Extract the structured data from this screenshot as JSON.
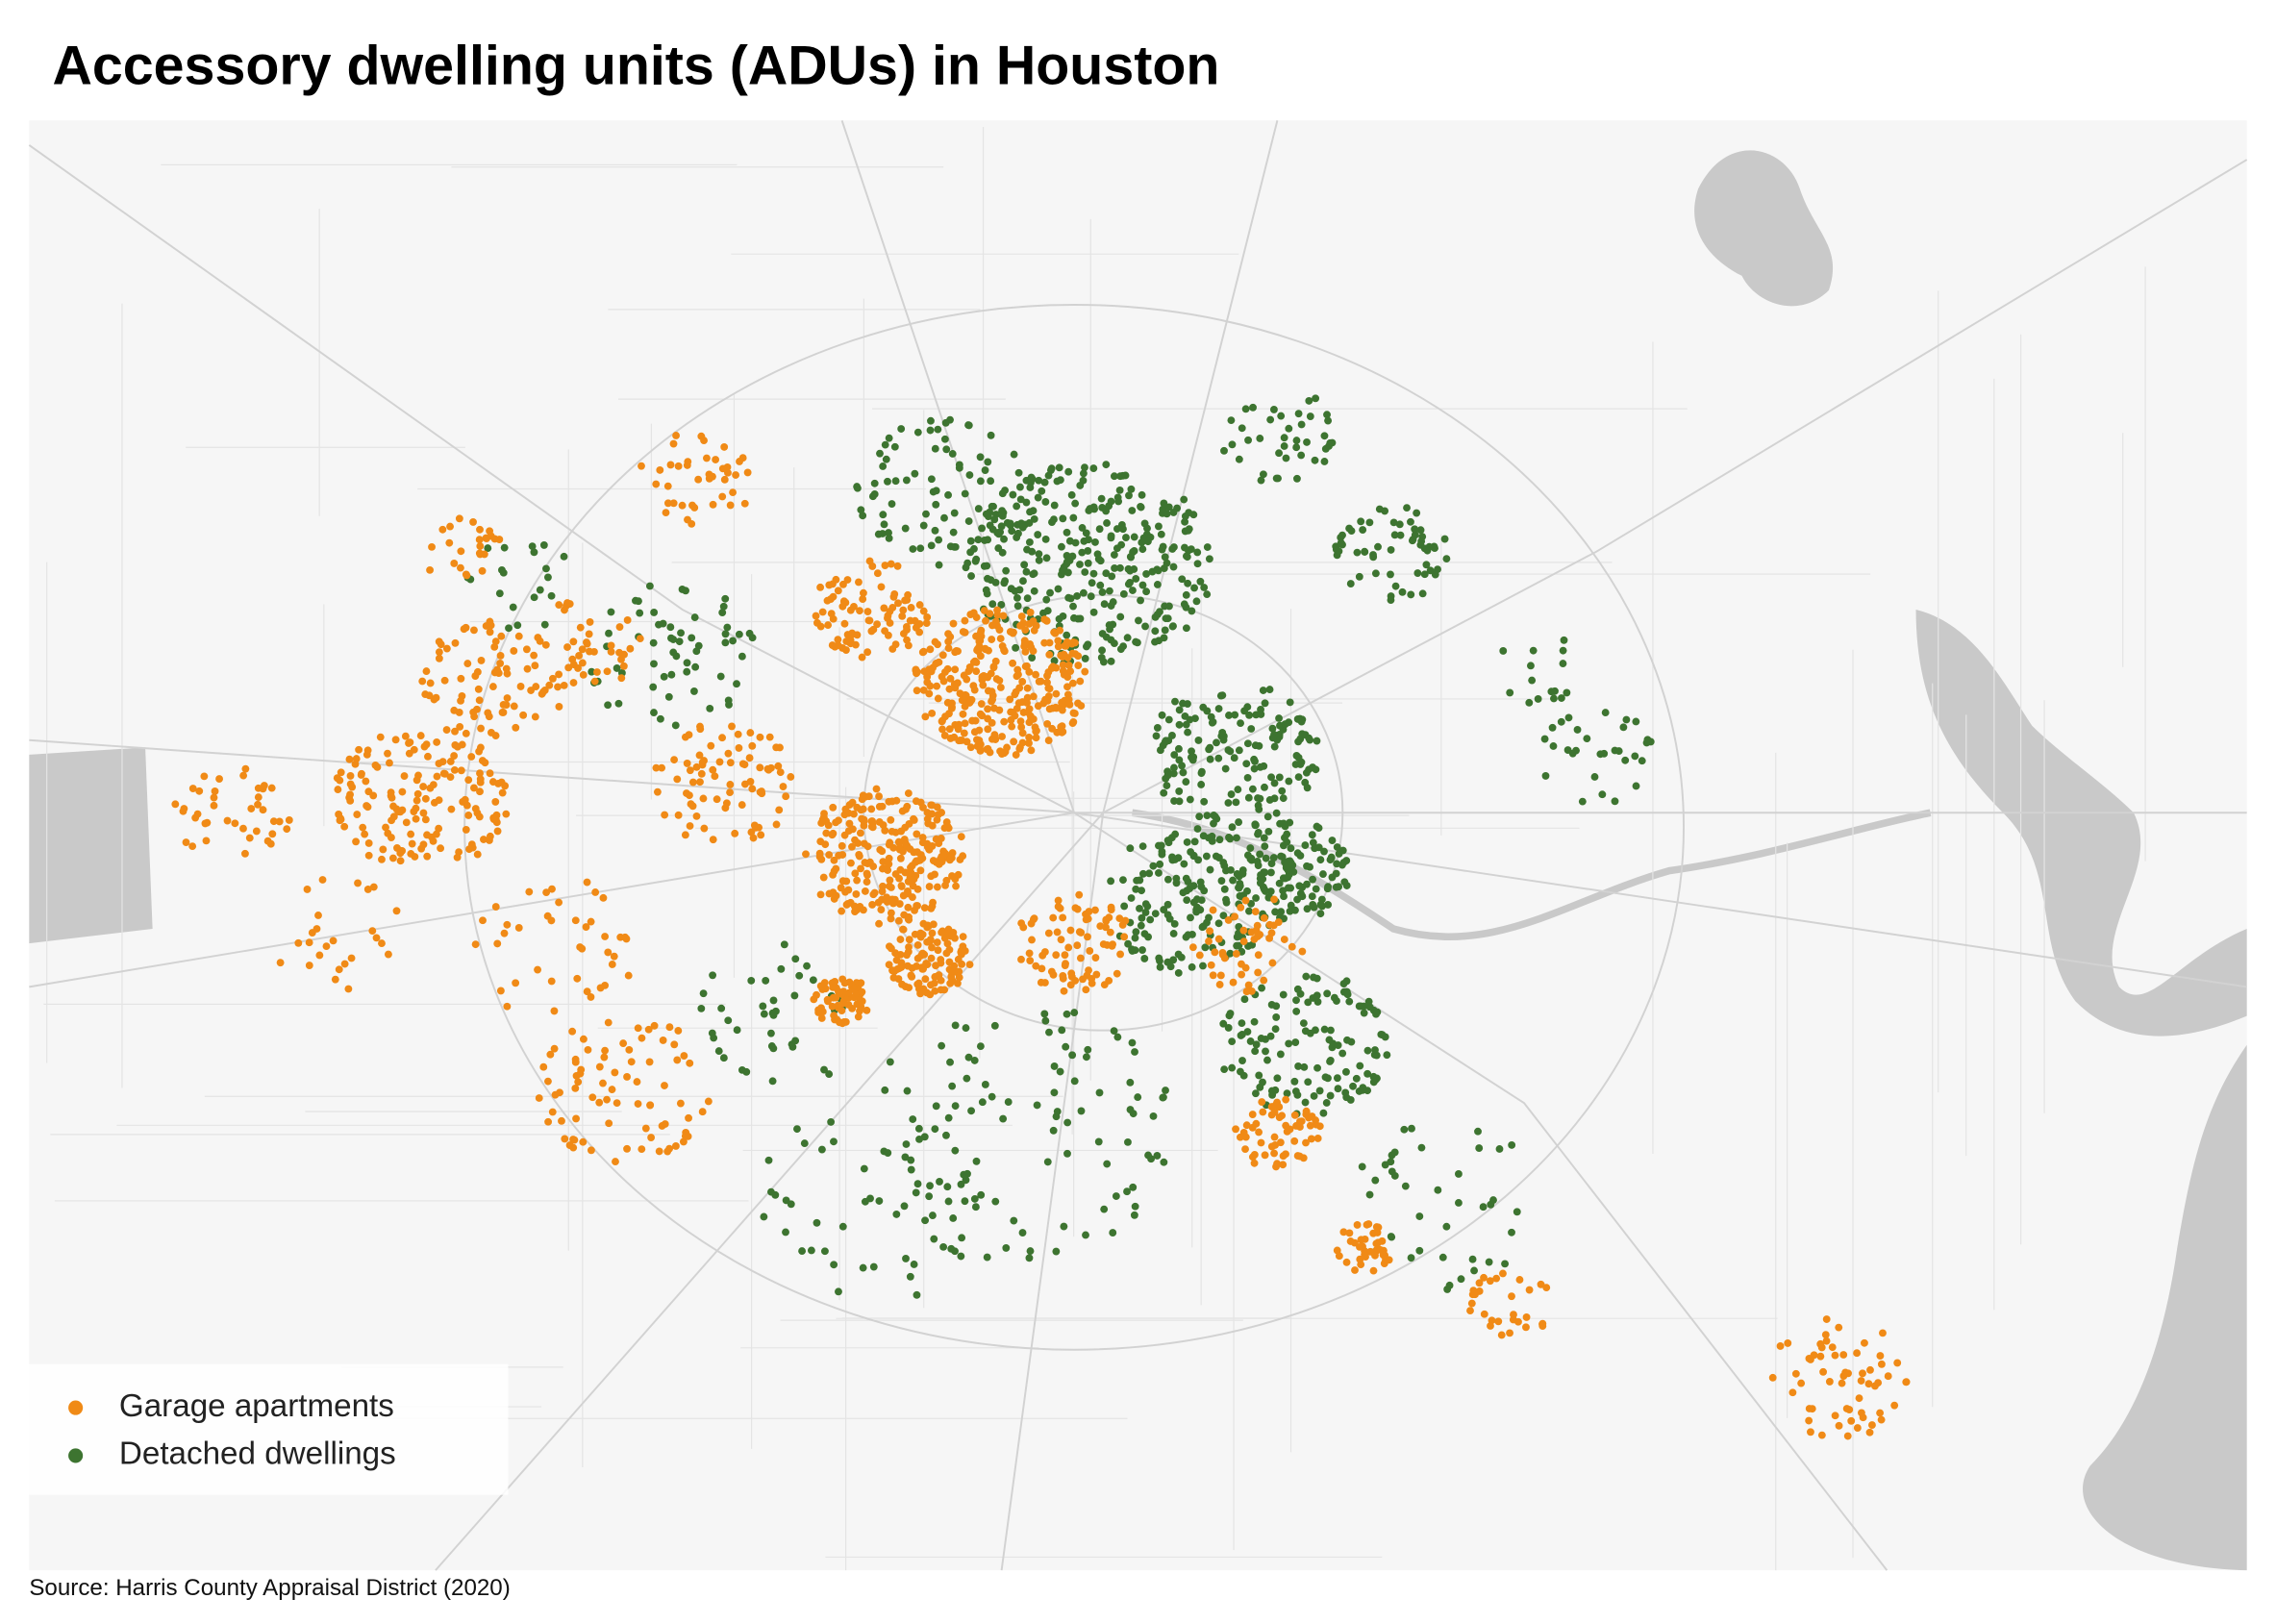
{
  "title": "Accessory dwelling units (ADUs) in Houston",
  "legend": [
    {
      "label": "Garage apartments",
      "color": "#f08a16"
    },
    {
      "label": "Detached dwellings",
      "color": "#3d7430"
    }
  ],
  "source": "Source: Harris County Appraisal District (2020)"
}
